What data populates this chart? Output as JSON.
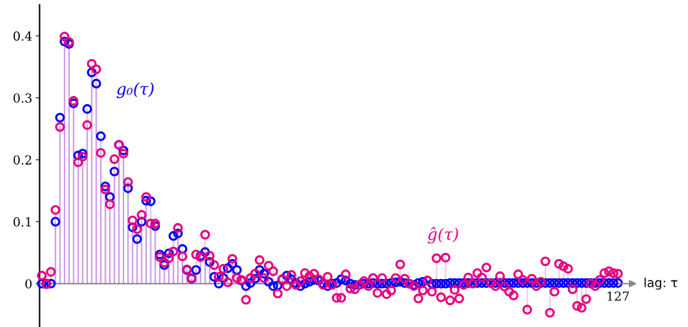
{
  "chart_data": {
    "type": "lollipop",
    "xlabel": "lag: τ",
    "marker": "circle",
    "grid": false,
    "categories": [
      null,
      null,
      null,
      null,
      null,
      null,
      null,
      null,
      null,
      null,
      null,
      null,
      null,
      null,
      null,
      null,
      null,
      null,
      null,
      null,
      null,
      null,
      null,
      null,
      null,
      null,
      null,
      null,
      null,
      null,
      null,
      null,
      null,
      null,
      null,
      null,
      null,
      null,
      null,
      null,
      null,
      null,
      null,
      null,
      null,
      null,
      null,
      null,
      null,
      null,
      null,
      null,
      null,
      null,
      null,
      null,
      null,
      null,
      null,
      null,
      null,
      null,
      null,
      null,
      null,
      null,
      null,
      null,
      null,
      null,
      null,
      null,
      null,
      null,
      null,
      null,
      null,
      null,
      null,
      null,
      null,
      null,
      null,
      null,
      null,
      null,
      null,
      null,
      null,
      null,
      null,
      null,
      null,
      null,
      null,
      null,
      null,
      null,
      null,
      null,
      null,
      null,
      null,
      null,
      null,
      null,
      null,
      null,
      null,
      null,
      null,
      null,
      null,
      null,
      null,
      null,
      null,
      null,
      null,
      null,
      null,
      null,
      null,
      null,
      null,
      null,
      null,
      "127"
    ],
    "ylim": [
      -0.07,
      0.45
    ],
    "yticks": [
      0,
      0.1,
      0.2,
      0.3,
      0.4
    ],
    "series": [
      {
        "name": "g₀(τ)",
        "color": "#0000ff",
        "values": [
          0,
          0,
          0,
          0.1,
          0.268,
          0.391,
          0.387,
          0.291,
          0.207,
          0.21,
          0.282,
          0.341,
          0.323,
          0.238,
          0.157,
          0.14,
          0.181,
          0.224,
          0.215,
          0.154,
          0.091,
          0.072,
          0.1,
          0.134,
          0.133,
          0.093,
          0.047,
          0.03,
          0.049,
          0.077,
          0.081,
          0.056,
          0.022,
          0.008,
          0.022,
          0.045,
          0.051,
          0.035,
          0.011,
          0.0,
          0.009,
          0.025,
          0.032,
          0.022,
          0.005,
          -0.004,
          0.001,
          0.008,
          0.022,
          0.016,
          0.003,
          -0.004,
          -0.003,
          0.007,
          0.013,
          0.007,
          0.001,
          -0.004,
          0.0,
          0.003,
          0.006,
          0.005,
          0.0,
          -0.004,
          0.0,
          0.001,
          0.007,
          0.005,
          0.0,
          -0.002,
          -0.002,
          0.0,
          0.0,
          0.001,
          0.0,
          0.0,
          0.0,
          0.001,
          0.002,
          0.003,
          0.001,
          0.0,
          -0.002,
          0.001,
          0.003,
          0.005,
          0.0,
          0.0,
          0.0,
          0.0,
          0.001,
          0.001,
          0.001,
          0.001,
          0.001,
          0.001,
          0.001,
          0.001,
          0.001,
          0.001,
          0.001,
          0.001,
          0.001,
          0.001,
          0.001,
          0.001,
          0.001,
          0.001,
          0.001,
          0.001,
          0.001,
          0.001,
          0.001,
          0.001,
          0.001,
          0.001,
          0.001,
          0.001,
          0.001,
          0.001,
          0.001,
          0.001,
          0.001,
          0.001,
          0.001,
          0.001,
          0.001,
          0.001
        ]
      },
      {
        "name": "ĝ(τ)",
        "color": "#e6007e",
        "values": [
          0.013,
          -0.001,
          0.019,
          0.119,
          0.253,
          0.399,
          0.39,
          0.295,
          0.196,
          0.205,
          0.256,
          0.355,
          0.346,
          0.211,
          0.152,
          0.128,
          0.201,
          0.224,
          0.21,
          0.164,
          0.102,
          0.088,
          0.111,
          0.14,
          0.097,
          0.097,
          0.043,
          0.034,
          0.041,
          0.052,
          0.09,
          0.044,
          0.023,
          0.009,
          0.047,
          0.043,
          0.079,
          0.045,
          0.03,
          0.011,
          0.024,
          0.002,
          0.04,
          0.009,
          0.006,
          -0.026,
          0.009,
          0.016,
          0.038,
          0.009,
          0.029,
          0.02,
          -0.016,
          0.007,
          -0.004,
          0.014,
          -0.002,
          0.004,
          0.017,
          0.012,
          0.016,
          0.007,
          -0.002,
          0.011,
          -0.002,
          -0.023,
          -0.023,
          0.015,
          -0.008,
          -0.009,
          -0.002,
          0.004,
          -0.004,
          0.009,
          -0.015,
          0.009,
          -0.017,
          -0.011,
          0.009,
          0.031,
          0.008,
          0.0,
          -0.004,
          -0.024,
          -0.011,
          0.005,
          -0.013,
          0.041,
          -0.022,
          0.042,
          -0.027,
          -0.01,
          -0.024,
          -0.002,
          0.01,
          0.0,
          0.017,
          0.01,
          0.026,
          0.001,
          -0.004,
          0.012,
          -0.005,
          -0.013,
          -0.019,
          0.015,
          0.006,
          -0.042,
          0.008,
          -0.004,
          0.003,
          0.036,
          -0.047,
          -0.013,
          0.032,
          0.028,
          0.024,
          -0.009,
          -0.036,
          -0.039,
          -0.025,
          0.0,
          -0.004,
          0.006,
          0.017,
          0.02,
          0.017,
          0.016
        ]
      }
    ]
  }
}
